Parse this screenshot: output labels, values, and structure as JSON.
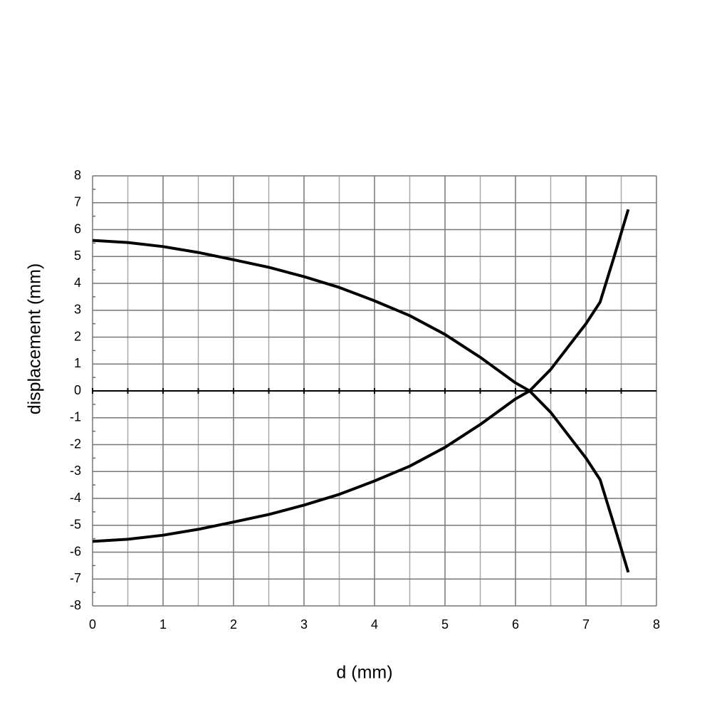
{
  "chart_data": {
    "type": "line",
    "x_label": "d (mm)",
    "y_label": "displacement (mm)",
    "x": [
      0,
      0.5,
      1,
      1.5,
      2,
      2.5,
      3,
      3.5,
      4,
      4.5,
      5,
      5.5,
      6,
      6.2,
      6.5,
      7,
      7.2,
      7.4,
      7.6
    ],
    "series": [
      {
        "color": "#000000",
        "values": [
          5.6,
          5.52,
          5.37,
          5.15,
          4.88,
          4.6,
          4.25,
          3.85,
          3.35,
          2.8,
          2.1,
          1.25,
          0.3,
          0,
          -0.8,
          -2.5,
          -3.3,
          -5,
          -6.75
        ]
      },
      {
        "color": "#000000",
        "values": [
          -5.6,
          -5.52,
          -5.37,
          -5.15,
          -4.88,
          -4.6,
          -4.25,
          -3.85,
          -3.35,
          -2.8,
          -2.1,
          -1.25,
          -0.3,
          0,
          0.8,
          2.5,
          3.3,
          5,
          6.75
        ]
      }
    ],
    "xlim": [
      0,
      8
    ],
    "xticks": [
      0,
      1,
      2,
      3,
      4,
      5,
      6,
      7,
      8
    ],
    "ylim": [
      -8,
      8
    ],
    "yticks": [
      -8,
      -7,
      -6,
      -5,
      -4,
      -3,
      -2,
      -1,
      0,
      1,
      2,
      3,
      4,
      5,
      6,
      7,
      8
    ],
    "grid": true
  }
}
